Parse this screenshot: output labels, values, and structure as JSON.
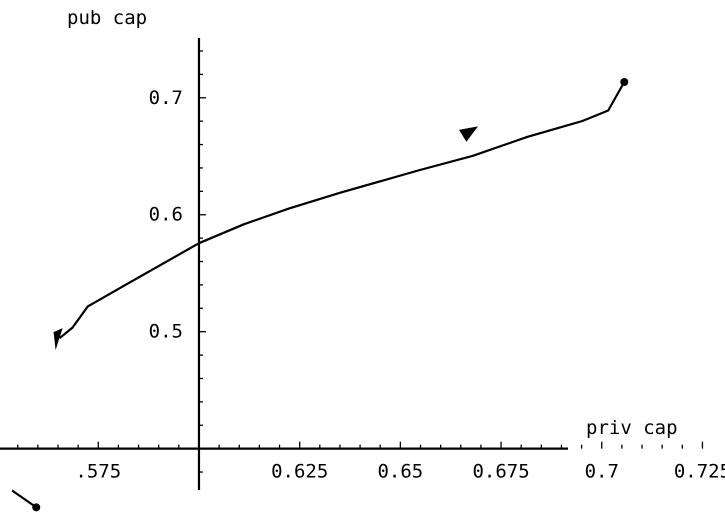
{
  "chart_data": {
    "type": "line",
    "title": "",
    "xlabel": "priv cap",
    "ylabel": "pub cap",
    "x_ticks": [
      {
        "value": 0.575,
        "label": ".575"
      },
      {
        "value": 0.625,
        "label": "0.625"
      },
      {
        "value": 0.65,
        "label": "0.65"
      },
      {
        "value": 0.675,
        "label": "0.675"
      },
      {
        "value": 0.7,
        "label": "0.7"
      },
      {
        "value": 0.725,
        "label": "0.725"
      }
    ],
    "y_ticks": [
      {
        "value": 0.5,
        "label": "0.5"
      },
      {
        "value": 0.6,
        "label": "0.6"
      },
      {
        "value": 0.7,
        "label": "0.7"
      }
    ],
    "xlim": [
      0.5506,
      0.7306
    ],
    "ylim": [
      0.3407,
      0.7836
    ],
    "axes_origin": {
      "x": 0.6,
      "y": 0.4
    },
    "grid": false,
    "series": [
      {
        "x": [
          0.5654,
          0.5686,
          0.5724,
          0.582,
          0.6,
          0.6112,
          0.6224,
          0.6352,
          0.6544,
          0.668,
          0.6816,
          0.6952,
          0.7016,
          0.7056
        ],
        "y": [
          0.4945,
          0.5035,
          0.5216,
          0.5405,
          0.5757,
          0.5919,
          0.6054,
          0.6189,
          0.6378,
          0.6504,
          0.6666,
          0.6801,
          0.6891,
          0.7135
        ],
        "direction_arrow_at": {
          "x": 0.668,
          "y": 0.6729
        },
        "end_marker": true
      },
      {
        "x": [
          0.5536,
          0.5596
        ],
        "y": [
          0.3642,
          0.3498
        ],
        "end_marker": true
      }
    ]
  }
}
